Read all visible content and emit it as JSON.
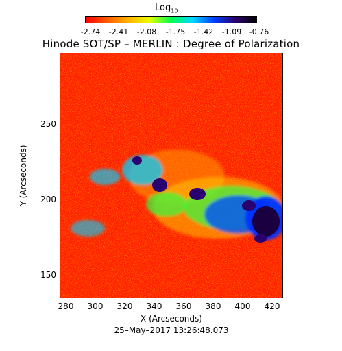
{
  "colorbar": {
    "label": "Log",
    "label_sub": "10",
    "ticks": [
      "-2.74",
      "-2.41",
      "-2.08",
      "-1.75",
      "-1.42",
      "-1.09",
      "-0.76"
    ],
    "colors": [
      "#ff0000",
      "#ff5a00",
      "#ffb400",
      "#e6ff00",
      "#00ff50",
      "#00d8ff",
      "#0040ff",
      "#2a0070",
      "#000000"
    ]
  },
  "title": "Hinode SOT/SP – MERLIN : Degree of Polarization",
  "axes": {
    "xlabel": "X (Arcseconds)",
    "ylabel": "Y (Arcseconds)",
    "xticks": [
      "280",
      "300",
      "320",
      "340",
      "360",
      "380",
      "400",
      "420"
    ],
    "yticks": [
      "250",
      "200",
      "150"
    ],
    "xlim": [
      273,
      426
    ],
    "ylim": [
      135,
      295
    ]
  },
  "timestamp": "25–May–2017 13:26:48.073",
  "image_content": "solar active-region polarization map, mostly red/orange background with green/blue/purple patches in the middle-right"
}
